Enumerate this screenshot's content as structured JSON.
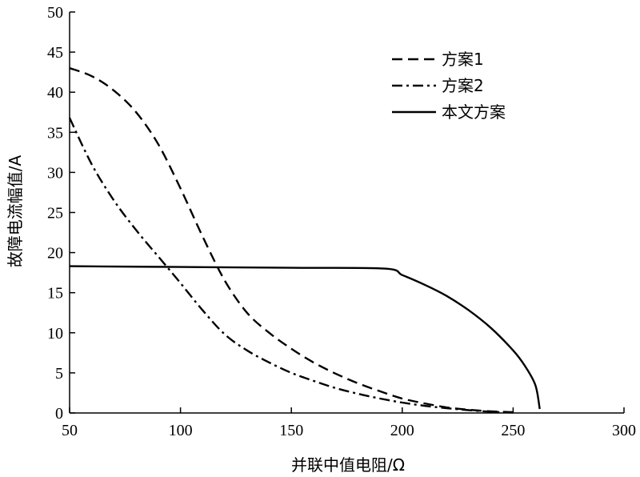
{
  "chart_data": {
    "type": "line",
    "xlabel": "并联中值电阻/Ω",
    "ylabel": "故障电流幅值/A",
    "xlim": [
      50,
      300
    ],
    "ylim": [
      0,
      50
    ],
    "xticks": [
      50,
      100,
      150,
      200,
      250,
      300
    ],
    "yticks": [
      0,
      5,
      10,
      15,
      20,
      25,
      30,
      35,
      40,
      45,
      50
    ],
    "grid": false,
    "legend_position": "top-right",
    "series": [
      {
        "name": "方案1",
        "style": "dashed",
        "color": "#000000",
        "x": [
          50,
          60,
          70,
          80,
          90,
          100,
          110,
          120,
          130,
          140,
          150,
          160,
          170,
          180,
          190,
          200,
          210,
          220,
          230,
          240,
          250
        ],
        "y": [
          43.0,
          42.0,
          40.2,
          37.5,
          33.5,
          28.0,
          22.0,
          16.5,
          12.5,
          10.0,
          8.0,
          6.3,
          4.9,
          3.7,
          2.7,
          1.8,
          1.2,
          0.7,
          0.4,
          0.2,
          0.1
        ]
      },
      {
        "name": "方案2",
        "style": "dash-dot",
        "color": "#000000",
        "x": [
          50,
          60,
          70,
          80,
          90,
          100,
          110,
          120,
          130,
          140,
          150,
          160,
          170,
          180,
          190,
          200,
          210,
          220,
          230,
          240,
          250
        ],
        "y": [
          36.8,
          31.0,
          26.5,
          22.8,
          19.5,
          16.2,
          12.8,
          9.8,
          7.8,
          6.3,
          5.0,
          4.0,
          3.1,
          2.4,
          1.8,
          1.3,
          0.9,
          0.6,
          0.35,
          0.15,
          0.05
        ]
      },
      {
        "name": "本文方案",
        "style": "solid",
        "color": "#000000",
        "x": [
          50,
          100,
          150,
          192,
          200,
          210,
          220,
          230,
          240,
          250,
          255,
          260,
          262
        ],
        "y": [
          18.3,
          18.2,
          18.1,
          18.0,
          17.2,
          16.0,
          14.6,
          12.8,
          10.6,
          7.8,
          6.0,
          3.5,
          0.5
        ]
      }
    ]
  }
}
